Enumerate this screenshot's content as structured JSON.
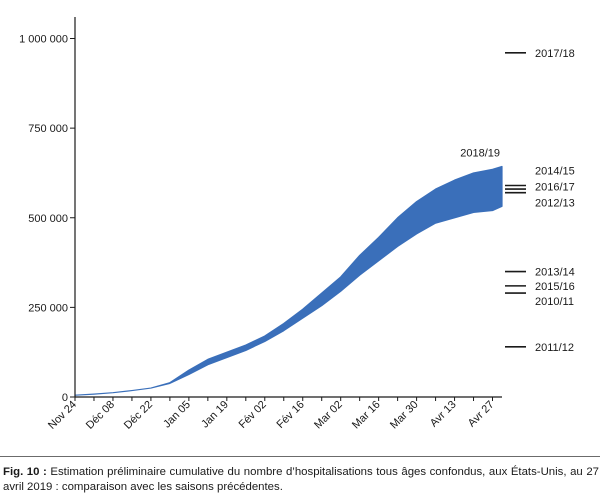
{
  "chart_data": {
    "type": "area",
    "title": "",
    "xlabel": "",
    "ylabel": "",
    "ylim": [
      0,
      1060000
    ],
    "grid": false,
    "y_ticks": [
      0,
      250000,
      500000,
      750000,
      1000000
    ],
    "y_tick_labels": [
      "0",
      "250 000",
      "500 000",
      "750 000",
      "1 000 000"
    ],
    "x_tick_labels": [
      "Nov 24",
      "Déc 08",
      "Déc 22",
      "Jan 05",
      "Jan 19",
      "Fév 02",
      "Fév 16",
      "Mar 02",
      "Mar 16",
      "Mar 30",
      "Avr 13",
      "Avr 27"
    ],
    "x_tick_weeks": [
      0,
      2,
      4,
      6,
      8,
      10,
      12,
      14,
      16,
      18,
      20,
      22
    ],
    "band": {
      "name": "2018/19",
      "color": "#3a6fba",
      "weeks": [
        0,
        1,
        2,
        3,
        4,
        5,
        6,
        7,
        8,
        9,
        10,
        11,
        12,
        13,
        14,
        15,
        16,
        17,
        18,
        19,
        20,
        21,
        22
      ],
      "lower": [
        5000,
        8000,
        12000,
        18000,
        25000,
        38000,
        63000,
        90000,
        110000,
        130000,
        155000,
        185000,
        220000,
        255000,
        295000,
        340000,
        380000,
        420000,
        455000,
        485000,
        500000,
        515000,
        520000
      ],
      "upper": [
        5000,
        8000,
        12000,
        18000,
        25000,
        40000,
        75000,
        105000,
        125000,
        145000,
        170000,
        205000,
        245000,
        290000,
        335000,
        395000,
        445000,
        500000,
        545000,
        580000,
        605000,
        625000,
        635000
      ]
    },
    "band_end_week": 22.5,
    "band_end_lower": 532000,
    "band_end_upper": 643000,
    "prior_seasons": [
      {
        "name": "2017/18",
        "value": 960000
      },
      {
        "name": "2014/15",
        "value": 590000
      },
      {
        "name": "2016/17",
        "value": 580000
      },
      {
        "name": "2012/13",
        "value": 570000
      },
      {
        "name": "2013/14",
        "value": 350000
      },
      {
        "name": "2015/16",
        "value": 310000
      },
      {
        "name": "2010/11",
        "value": 290000
      },
      {
        "name": "2011/12",
        "value": 140000
      }
    ],
    "season_label_stack": [
      {
        "name": "2014/15",
        "value": 632000
      },
      {
        "name": "2016/17",
        "value": 587000
      },
      {
        "name": "2012/13",
        "value": 542000
      },
      {
        "name": "2013/14",
        "value": 350000
      },
      {
        "name": "2015/16",
        "value": 310000
      },
      {
        "name": "2010/11",
        "value": 268000
      }
    ]
  },
  "caption": {
    "label": "Fig. 10 :",
    "text": " Estimation préliminaire cumulative du nombre d’hospitalisations tous âges confondus, aux États-Unis, au 27 avril 2019 : comparaison avec les saisons précédentes."
  }
}
